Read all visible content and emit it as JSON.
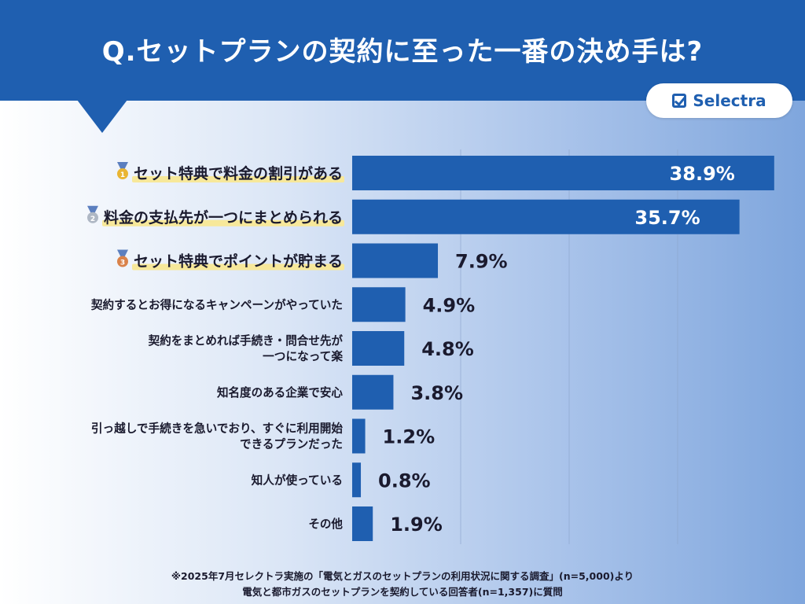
{
  "header": {
    "title": "Q.セットプランの契約に至った一番の決め手は?",
    "logo_text": "Selectra",
    "colors": {
      "header_bg": "#1f5fb0",
      "bar": "#1f5fb0",
      "highlight": "#f7e89a"
    }
  },
  "chart_data": {
    "type": "bar",
    "orientation": "horizontal",
    "categories": [
      "セット特典で料金の割引がある",
      "料金の支払先が一つにまとめられる",
      "セット特典でポイントが貯まる",
      "契約するとお得になるキャンペーンがやっていた",
      "契約をまとめれば手続き・問合せ先が\n一つになって楽",
      "知名度のある企業で安心",
      "引っ越しで手続きを急いでおり、すぐに利用開始\nできるプランだった",
      "知人が使っている",
      "その他"
    ],
    "values": [
      38.9,
      35.7,
      7.9,
      4.9,
      4.8,
      3.8,
      1.2,
      0.8,
      1.9
    ],
    "data_labels": [
      "38.9%",
      "35.7%",
      "7.9%",
      "4.9%",
      "4.8%",
      "3.8%",
      "1.2%",
      "0.8%",
      "1.9%"
    ],
    "ranks": [
      "1",
      "2",
      "3",
      "",
      "",
      "",
      "",
      "",
      ""
    ],
    "rank_icons": [
      "gold-medal-icon",
      "silver-medal-icon",
      "bronze-medal-icon"
    ],
    "xlim": [
      0,
      40
    ],
    "grid": true
  },
  "footnote": {
    "line1": "※2025年7月セレクトラ実施の「電気とガスのセットプランの利用状況に関する調査」(n=5,000)より",
    "line2": "電気と都市ガスのセットプランを契約している回答者(n=1,357)に質問"
  }
}
